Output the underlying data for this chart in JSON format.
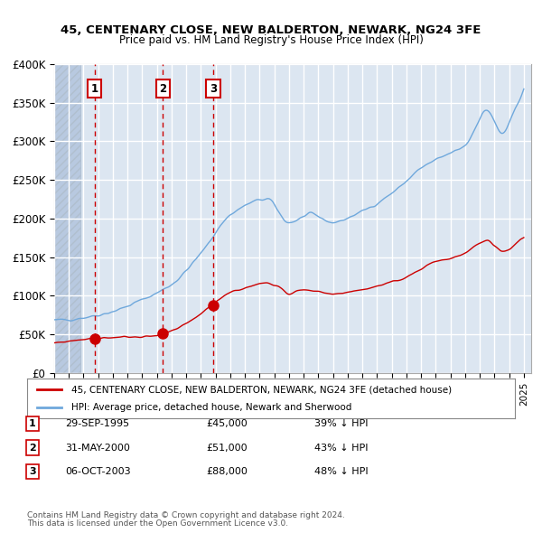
{
  "title1": "45, CENTENARY CLOSE, NEW BALDERTON, NEWARK, NG24 3FE",
  "title2": "Price paid vs. HM Land Registry's House Price Index (HPI)",
  "sale_dates": [
    "1995-09-29",
    "2000-05-31",
    "2003-10-06"
  ],
  "sale_prices": [
    45000,
    51000,
    88000
  ],
  "sale_labels": [
    "1",
    "2",
    "3"
  ],
  "sale_pct": [
    "39% ↓ HPI",
    "43% ↓ HPI",
    "48% ↓ HPI"
  ],
  "legend_line1": "45, CENTENARY CLOSE, NEW BALDERTON, NEWARK, NG24 3FE (detached house)",
  "legend_line2": "HPI: Average price, detached house, Newark and Sherwood",
  "table_rows": [
    [
      "1",
      "29-SEP-1995",
      "£45,000",
      "39% ↓ HPI"
    ],
    [
      "2",
      "31-MAY-2000",
      "£51,000",
      "43% ↓ HPI"
    ],
    [
      "3",
      "06-OCT-2003",
      "£88,000",
      "48% ↓ HPI"
    ]
  ],
  "footnote1": "Contains HM Land Registry data © Crown copyright and database right 2024.",
  "footnote2": "This data is licensed under the Open Government Licence v3.0.",
  "hpi_color": "#6fa8dc",
  "price_color": "#cc0000",
  "marker_color": "#cc0000",
  "dashed_color": "#cc0000",
  "bg_color": "#dce6f1",
  "hatch_color": "#b8c9e0",
  "grid_color": "#ffffff",
  "ylim": [
    0,
    400000
  ],
  "yticks": [
    0,
    50000,
    100000,
    150000,
    200000,
    250000,
    300000,
    350000,
    400000
  ],
  "xlim_start": 1993.0,
  "xlim_end": 2025.5
}
